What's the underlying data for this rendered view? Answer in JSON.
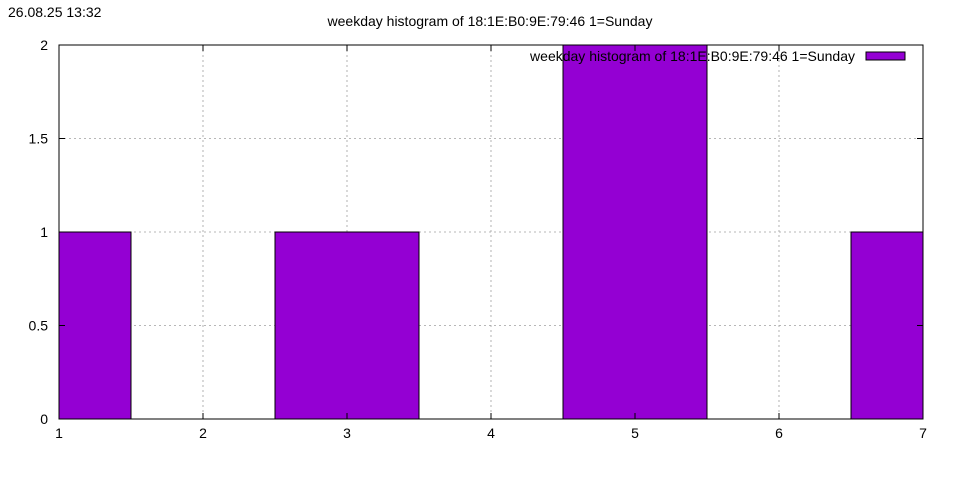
{
  "timestamp": "26.08.25 13:32",
  "chart_data": {
    "type": "bar",
    "title": "weekday histogram of 18:1E:B0:9E:79:46 1=Sunday",
    "xlabel": "",
    "ylabel": "",
    "xlim": [
      1,
      7
    ],
    "ylim": [
      0,
      2
    ],
    "x_ticks": [
      "1",
      "2",
      "3",
      "4",
      "5",
      "6",
      "7"
    ],
    "y_ticks": [
      "0",
      "0.5",
      "1",
      "1.5",
      "2"
    ],
    "bar_width": 1,
    "grid": true,
    "legend_position": "top-right",
    "series": [
      {
        "name": "weekday histogram of 18:1E:B0:9E:79:46 1=Sunday",
        "color": "#9400d3",
        "x": [
          1,
          2,
          3,
          4,
          5,
          6,
          7
        ],
        "values": [
          1,
          0,
          1,
          0,
          2,
          0,
          1
        ]
      }
    ]
  }
}
